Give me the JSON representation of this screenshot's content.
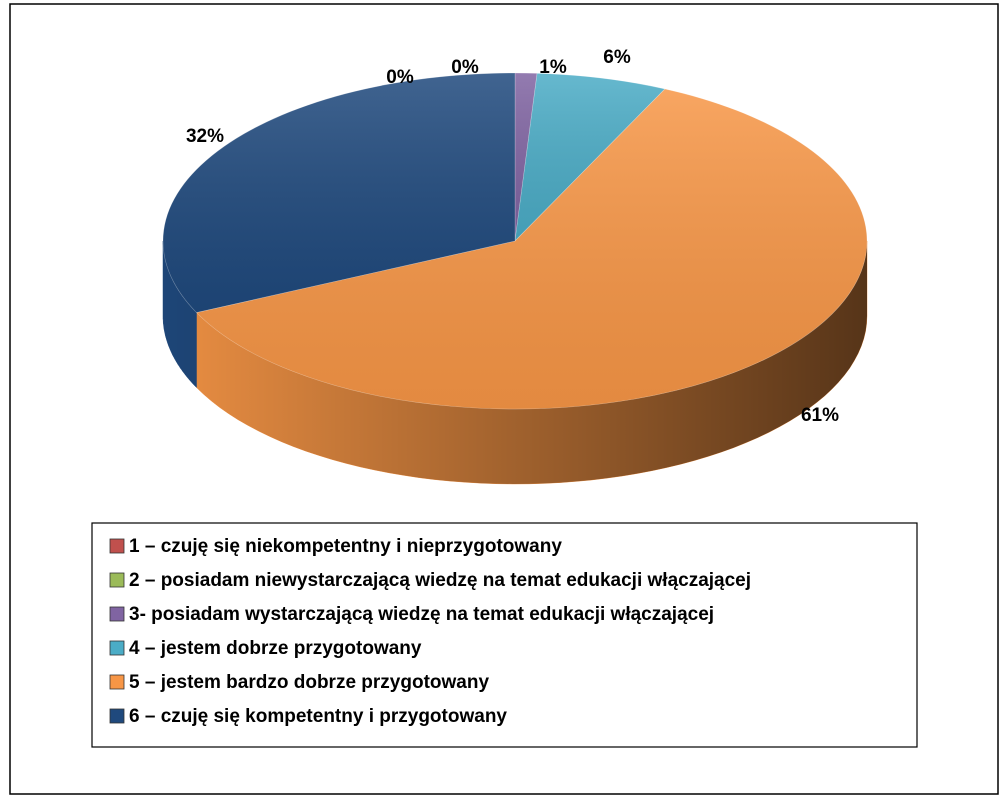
{
  "chart_data": {
    "type": "pie3d",
    "categories": [
      "1 – czuję się niekompetentny i nieprzygotowany",
      "2 – posiadam niewystarczającą wiedzę na temat edukacji włączającej",
      "3- posiadam wystarczającą wiedzę na temat edukacji włączającej",
      "4 – jestem dobrze przygotowany",
      "5 – jestem bardzo dobrze przygotowany",
      "6 – czuję się kompetentny i przygotowany"
    ],
    "values": [
      0,
      0,
      1,
      6,
      61,
      32
    ],
    "value_labels": [
      "0%",
      "0%",
      "1%",
      "6%",
      "61%",
      "32%"
    ],
    "colors": [
      "#c0504d",
      "#9bbb59",
      "#8064a2",
      "#4bacc6",
      "#f79646",
      "#1f497d"
    ],
    "legend": "bottom"
  }
}
